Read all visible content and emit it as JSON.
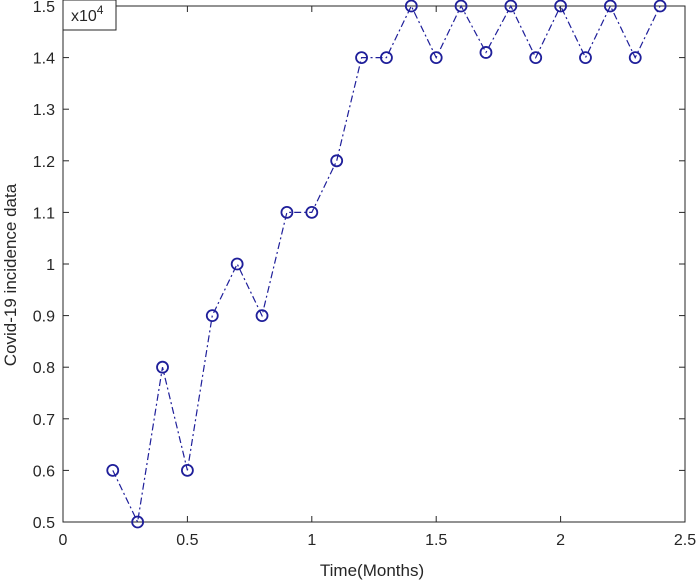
{
  "chart_data": {
    "type": "line",
    "title": "",
    "xlabel": "Time(Months)",
    "ylabel": "Covid-19 incidence data",
    "y_exponent_label": "x10",
    "y_exponent_power": "4",
    "xlim": [
      0,
      2.5
    ],
    "ylim": [
      0.5,
      1.5
    ],
    "x_ticks": [
      "0",
      "0.5",
      "1",
      "1.5",
      "2",
      "2.5"
    ],
    "y_ticks": [
      "0.5",
      "0.6",
      "0.7",
      "0.8",
      "0.9",
      "1",
      "1.1",
      "1.2",
      "1.3",
      "1.4",
      "1.5"
    ],
    "grid": false,
    "series": [
      {
        "line_style": "dash-dot",
        "marker": "circle",
        "color": "#1f1f9a",
        "x": [
          0.2,
          0.3,
          0.4,
          0.5,
          0.6,
          0.7,
          0.8,
          0.9,
          1.0,
          1.1,
          1.2,
          1.3,
          1.4,
          1.5,
          1.6,
          1.7,
          1.8,
          1.9,
          2.0,
          2.1,
          2.2,
          2.3,
          2.4
        ],
        "y": [
          0.6,
          0.5,
          0.8,
          0.6,
          0.9,
          1.0,
          0.9,
          1.1,
          1.1,
          1.2,
          1.4,
          1.4,
          1.5,
          1.4,
          1.5,
          1.41,
          1.5,
          1.4,
          1.5,
          1.4,
          1.5,
          1.4,
          1.5
        ]
      }
    ]
  }
}
